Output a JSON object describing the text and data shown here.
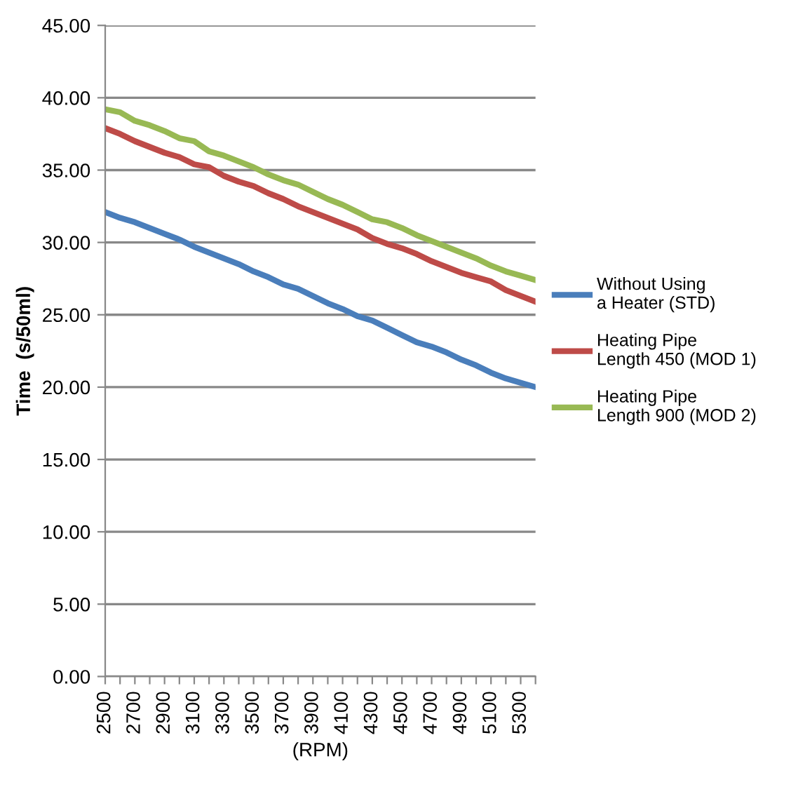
{
  "chart_data": {
    "type": "line",
    "xlabel": "(RPM)",
    "ylabel": "Time  (s/50ml)",
    "categories": [
      "2500",
      null,
      "2700",
      null,
      "2900",
      null,
      "3100",
      null,
      "3300",
      null,
      "3500",
      null,
      "3700",
      null,
      "3900",
      null,
      "4100",
      null,
      "4300",
      null,
      "4500",
      null,
      "4700",
      null,
      "4900",
      null,
      "5100",
      null,
      "5300",
      null
    ],
    "series": [
      {
        "name": "Without Using\na Heater (STD)",
        "color": "#4a7ebb",
        "values": [
          32.1,
          31.7,
          31.4,
          31.0,
          30.6,
          30.2,
          29.7,
          29.3,
          28.9,
          28.5,
          28.0,
          27.6,
          27.1,
          26.8,
          26.3,
          25.8,
          25.4,
          24.9,
          24.6,
          24.1,
          23.6,
          23.1,
          22.8,
          22.4,
          21.9,
          21.5,
          21.0,
          20.6,
          20.3,
          20.0
        ]
      },
      {
        "name": "Heating Pipe\nLength 450 (MOD 1)",
        "color": "#be4b48",
        "values": [
          37.9,
          37.5,
          37.0,
          36.6,
          36.2,
          35.9,
          35.4,
          35.2,
          34.6,
          34.2,
          33.9,
          33.4,
          33.0,
          32.5,
          32.1,
          31.7,
          31.3,
          30.9,
          30.3,
          29.9,
          29.6,
          29.2,
          28.7,
          28.3,
          27.9,
          27.6,
          27.3,
          26.7,
          26.3,
          25.9
        ]
      },
      {
        "name": "Heating Pipe\nLength 900 (MOD 2)",
        "color": "#98b954",
        "values": [
          39.2,
          39.0,
          38.4,
          38.1,
          37.7,
          37.2,
          37.0,
          36.3,
          36.0,
          35.6,
          35.2,
          34.7,
          34.3,
          34.0,
          33.5,
          33.0,
          32.6,
          32.1,
          31.6,
          31.4,
          31.0,
          30.5,
          30.1,
          29.7,
          29.3,
          28.9,
          28.4,
          28.0,
          27.7,
          27.4
        ]
      }
    ],
    "ylim": [
      0,
      45
    ],
    "yticks": [
      {
        "value": 0,
        "label": "0.00"
      },
      {
        "value": 5,
        "label": "5.00"
      },
      {
        "value": 10,
        "label": "10.00"
      },
      {
        "value": 15,
        "label": "15.00"
      },
      {
        "value": 20,
        "label": "20.00"
      },
      {
        "value": 25,
        "label": "25.00"
      },
      {
        "value": 30,
        "label": "30.00"
      },
      {
        "value": 35,
        "label": "35.00"
      },
      {
        "value": 40,
        "label": "40.00"
      },
      {
        "value": 45,
        "label": "45.00"
      }
    ],
    "grid": "y",
    "legend": "right",
    "marker": "none",
    "line_style": "solid"
  }
}
